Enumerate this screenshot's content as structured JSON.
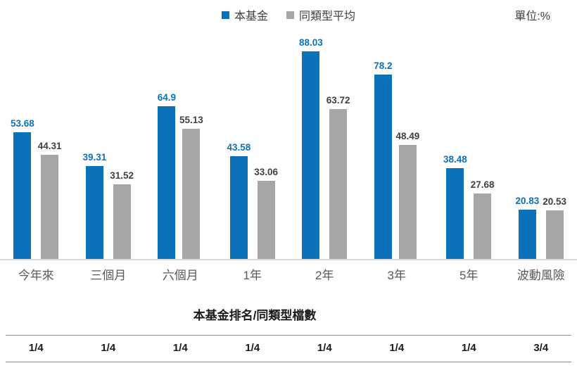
{
  "unit_label": "單位:%",
  "legend": [
    {
      "label": "本基金",
      "color": "#0b72b9"
    },
    {
      "label": "同類型平均",
      "color": "#a6a6a6"
    }
  ],
  "colors": {
    "fund": "#0b72b9",
    "average": "#a6a6a6",
    "fund_value_label": "#0b72b9",
    "average_value_label": "#404040",
    "axis_baseline": "#d9d9d9",
    "table_rule": "#8c8c8c",
    "category_label": "#595959"
  },
  "chart_data": {
    "type": "bar",
    "categories": [
      "今年來",
      "三個月",
      "六個月",
      "1年",
      "2年",
      "3年",
      "5年",
      "波動風險"
    ],
    "series": [
      {
        "name": "本基金",
        "color": "#0b72b9",
        "values": [
          53.68,
          39.31,
          64.9,
          43.58,
          88.03,
          78.2,
          38.48,
          20.83
        ]
      },
      {
        "name": "同類型平均",
        "color": "#a6a6a6",
        "values": [
          44.31,
          31.52,
          55.13,
          33.06,
          63.72,
          48.49,
          27.68,
          20.53
        ]
      }
    ],
    "title": "",
    "xlabel": "",
    "ylabel": "",
    "unit": "%",
    "ylim": [
      0,
      100
    ],
    "grid": false,
    "axis_ticks_visible": false,
    "legend_position": "top-center",
    "value_labels": true
  },
  "table": {
    "title": "本基金排名/同類型檔數",
    "values": [
      "1/4",
      "1/4",
      "1/4",
      "1/4",
      "1/4",
      "1/4",
      "1/4",
      "3/4"
    ]
  }
}
